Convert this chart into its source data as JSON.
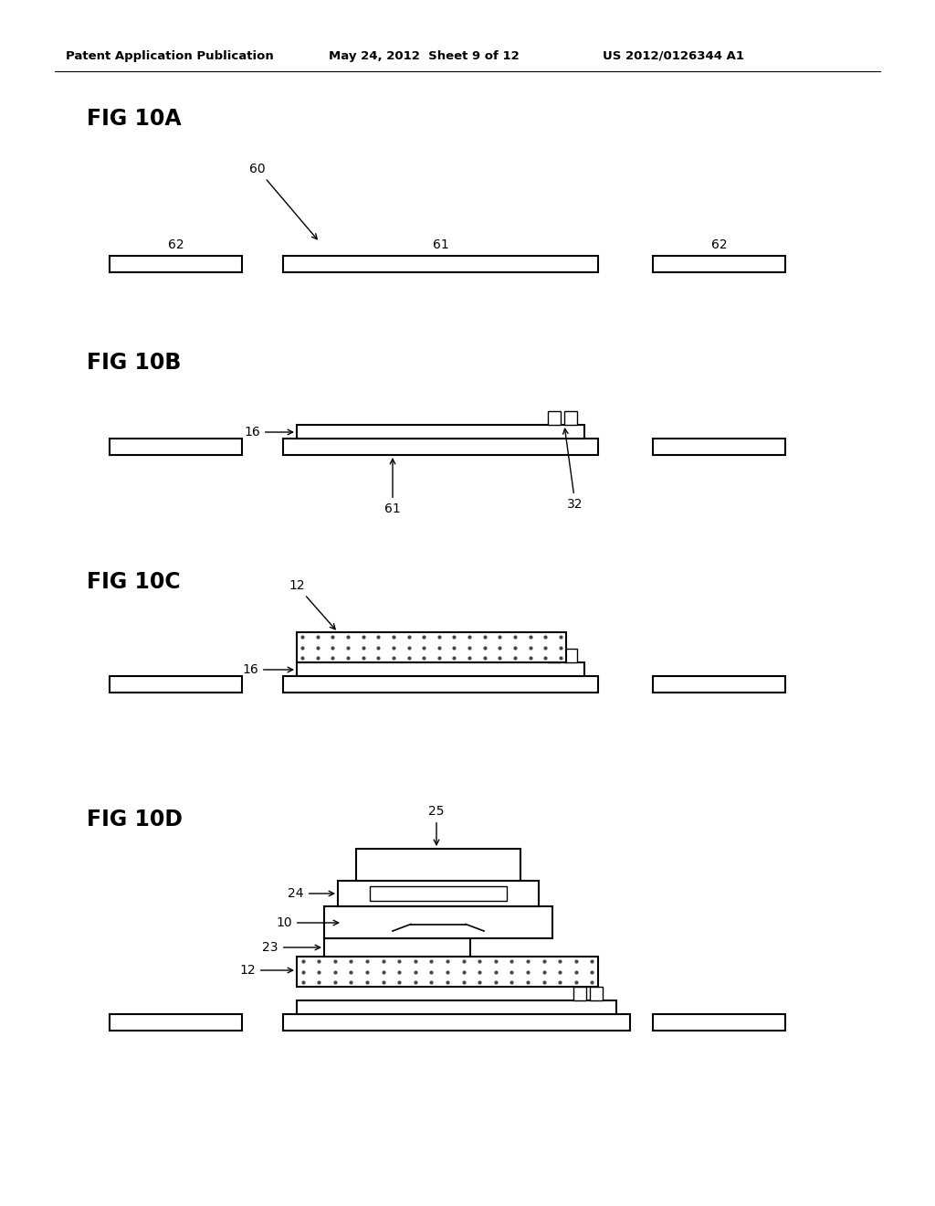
{
  "background_color": "#ffffff",
  "header_left": "Patent Application Publication",
  "header_mid": "May 24, 2012  Sheet 9 of 12",
  "header_right": "US 2012/0126344 A1",
  "line_color": "#000000",
  "dot_color": "#444444"
}
